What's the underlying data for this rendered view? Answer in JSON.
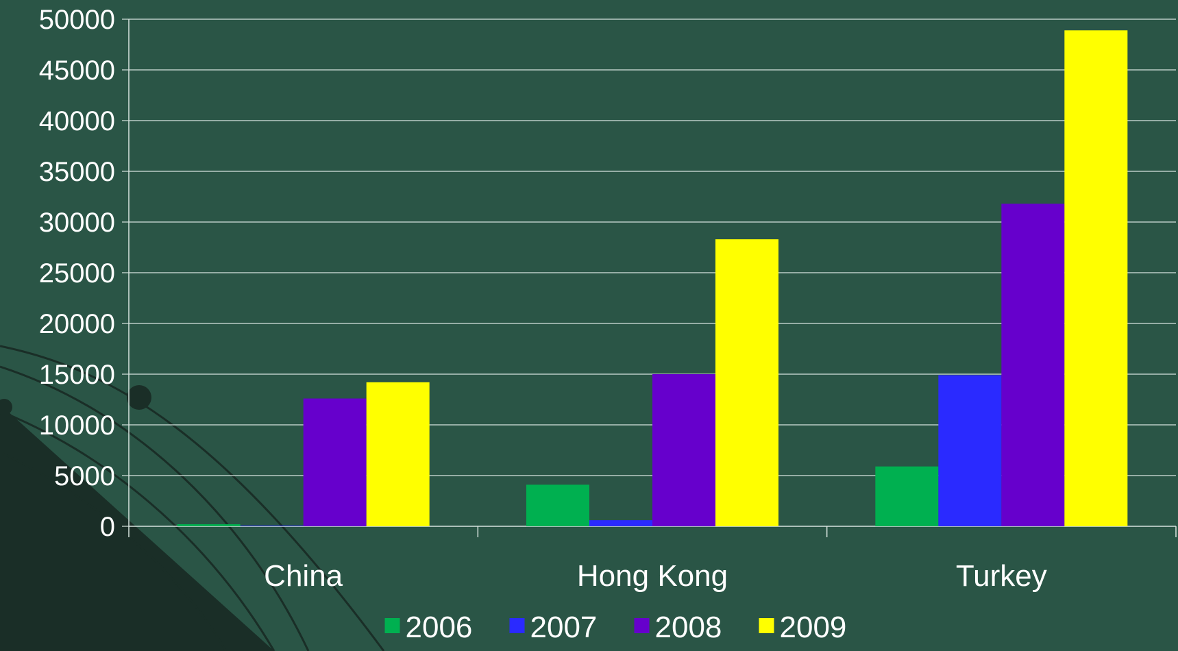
{
  "chart_data": {
    "type": "bar",
    "title": "",
    "xlabel": "",
    "ylabel": "",
    "categories": [
      "China",
      "Hong Kong",
      "Turkey"
    ],
    "ylim": [
      0,
      50000
    ],
    "yticks": [
      "0",
      "5000",
      "10000",
      "15000",
      "20000",
      "25000",
      "30000",
      "35000",
      "40000",
      "45000",
      "50000"
    ],
    "grid": true,
    "legend_position": "bottom",
    "series": [
      {
        "name": "2006",
        "color": "#00b050",
        "values": [
          200,
          4100,
          5900
        ]
      },
      {
        "name": "2007",
        "color": "#2a2aff",
        "values": [
          50,
          600,
          14900
        ]
      },
      {
        "name": "2008",
        "color": "#6600cc",
        "values": [
          12600,
          15000,
          31800
        ]
      },
      {
        "name": "2009",
        "color": "#ffff00",
        "values": [
          14200,
          28300,
          48900
        ]
      }
    ]
  },
  "colors": {
    "background": "#2a5546",
    "decoration_dark": "#1a2e27",
    "gridline": "#d8e4df",
    "text": "#ffffff"
  }
}
